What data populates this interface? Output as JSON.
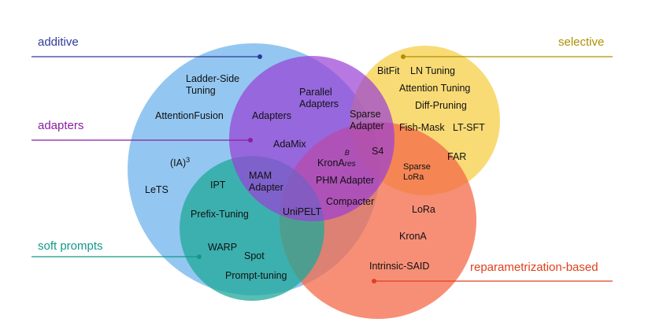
{
  "categories": {
    "additive": {
      "label": "additive",
      "color": "#2f3a9c"
    },
    "selective": {
      "label": "selective",
      "color": "#b09000"
    },
    "adapters": {
      "label": "adapters",
      "color": "#8a1fa0"
    },
    "soft_prompts": {
      "label": "soft prompts",
      "color": "#13998a"
    },
    "reparam": {
      "label": "reparametrization-based",
      "color": "#e0401c"
    }
  },
  "circle_colors": {
    "additive": "#6fb4ec",
    "adapters": "#9a3fd6",
    "soft_prompts": "#1fa89a",
    "selective": "#f7cf48",
    "reparam": "#f46a4a"
  },
  "methods": {
    "ladder_side_tuning": "Ladder-Side Tuning",
    "attention_fusion": "AttentionFusion",
    "ia3": "(IA)",
    "ia3_sup": "3",
    "lets": "LeTS",
    "parallel_adapters": "Parallel Adapters",
    "adapters": "Adapters",
    "adamix": "AdaMix",
    "sparse_adapter": "Sparse Adapter",
    "s4": "S4",
    "krona_res": "KronA",
    "krona_res_sup": "B",
    "krona_res_sub": "res",
    "phm_adapter": "PHM Adapter",
    "compacter": "Compacter",
    "mam_adapter": "MAM Adapter",
    "unipelt": "UniPELT",
    "ipt": "IPT",
    "prefix_tuning": "Prefix-Tuning",
    "warp": "WARP",
    "spot": "Spot",
    "prompt_tuning": "Prompt-tuning",
    "bitfit": "BitFit",
    "ln_tuning": "LN Tuning",
    "attention_tuning": "Attention Tuning",
    "diff_pruning": "Diff-Pruning",
    "fish_mask": "Fish-Mask",
    "lt_sft": "LT-SFT",
    "far": "FAR",
    "sparse_lora": "Sparse LoRa",
    "lora": "LoRa",
    "krona": "KronA",
    "intrinsic_said": "Intrinsic-SAID"
  }
}
